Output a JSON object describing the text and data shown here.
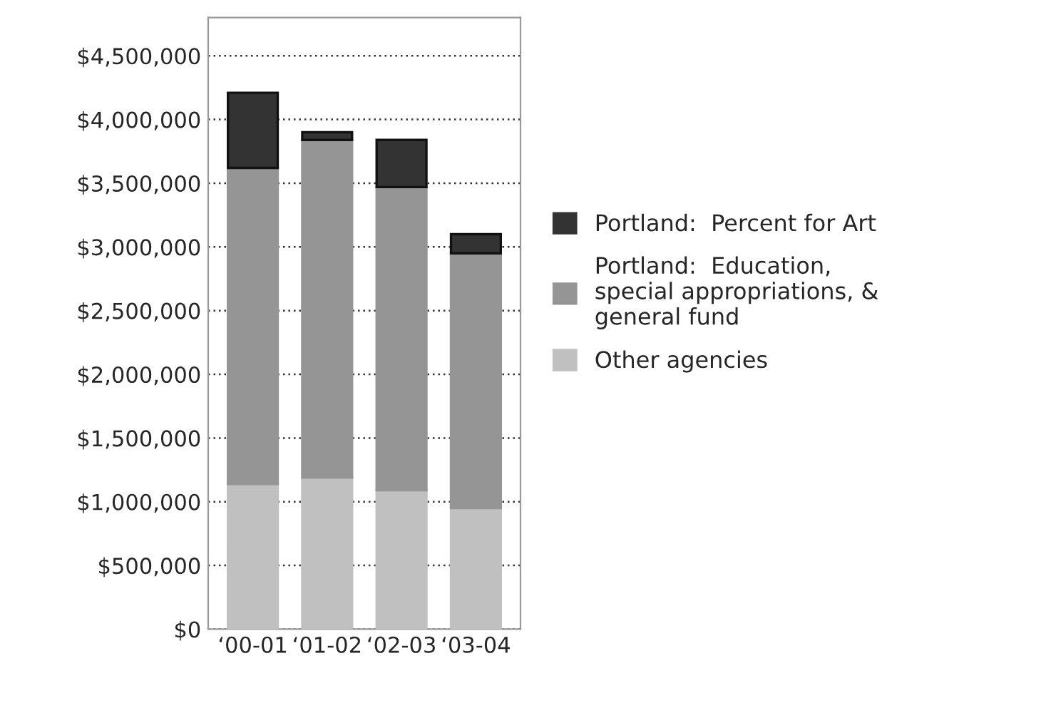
{
  "chart_data": {
    "type": "bar",
    "stacked": true,
    "categories": [
      "‘00-01",
      "‘01-02",
      "‘02-03",
      "‘03-04"
    ],
    "series": [
      {
        "name": "Other agencies",
        "color": "#c0c0c0",
        "values": [
          1140000,
          1190000,
          1090000,
          950000
        ]
      },
      {
        "name": "Portland:  Education, special appropriations, & general fund",
        "color": "#959595",
        "values": [
          2480000,
          2650000,
          2380000,
          2000000
        ]
      },
      {
        "name": "Portland:  Percent for Art",
        "color": "#333333",
        "values": [
          590000,
          60000,
          370000,
          150000
        ]
      }
    ],
    "ylim": [
      0,
      4800000
    ],
    "yticks": [
      {
        "value": 0,
        "label": "$0"
      },
      {
        "value": 500000,
        "label": "$500,000"
      },
      {
        "value": 1000000,
        "label": "$1,000,000"
      },
      {
        "value": 1500000,
        "label": "$1,500,000"
      },
      {
        "value": 2000000,
        "label": "$2,000,000"
      },
      {
        "value": 2500000,
        "label": "$2,500,000"
      },
      {
        "value": 3000000,
        "label": "$3,000,000"
      },
      {
        "value": 3500000,
        "label": "$3,500,000"
      },
      {
        "value": 4000000,
        "label": "$4,000,000"
      },
      {
        "value": 4500000,
        "label": "$4,500,000"
      }
    ],
    "grid": "y",
    "legend": "right"
  }
}
